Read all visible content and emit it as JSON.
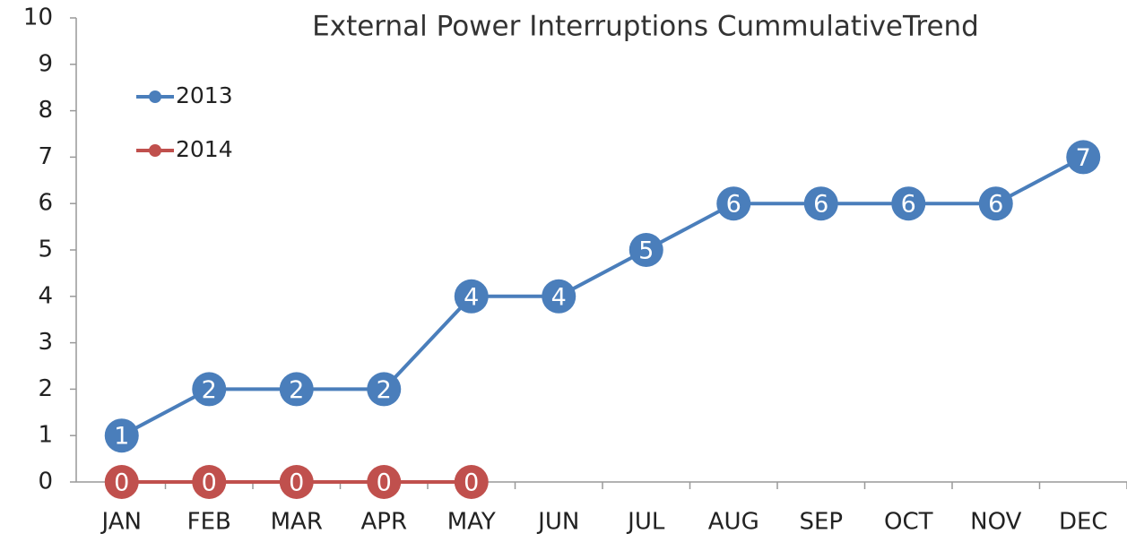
{
  "chart_data": {
    "type": "line",
    "title": "External Power Interruptions  CummulativeTrend",
    "categories": [
      "JAN",
      "FEB",
      "MAR",
      "APR",
      "MAY",
      "JUN",
      "JUL",
      "AUG",
      "SEP",
      "OCT",
      "NOV",
      "DEC"
    ],
    "series": [
      {
        "name": "2013",
        "color": "#4a7ebb",
        "values": [
          1,
          2,
          2,
          2,
          4,
          4,
          5,
          6,
          6,
          6,
          6,
          7
        ]
      },
      {
        "name": "2014",
        "color": "#c0504d",
        "values": [
          0,
          0,
          0,
          0,
          0,
          null,
          null,
          null,
          null,
          null,
          null,
          null
        ]
      }
    ],
    "ylim": [
      0,
      10
    ],
    "yticks": [
      0,
      1,
      2,
      3,
      4,
      5,
      6,
      7,
      8,
      9,
      10
    ],
    "legend": "upper left"
  }
}
